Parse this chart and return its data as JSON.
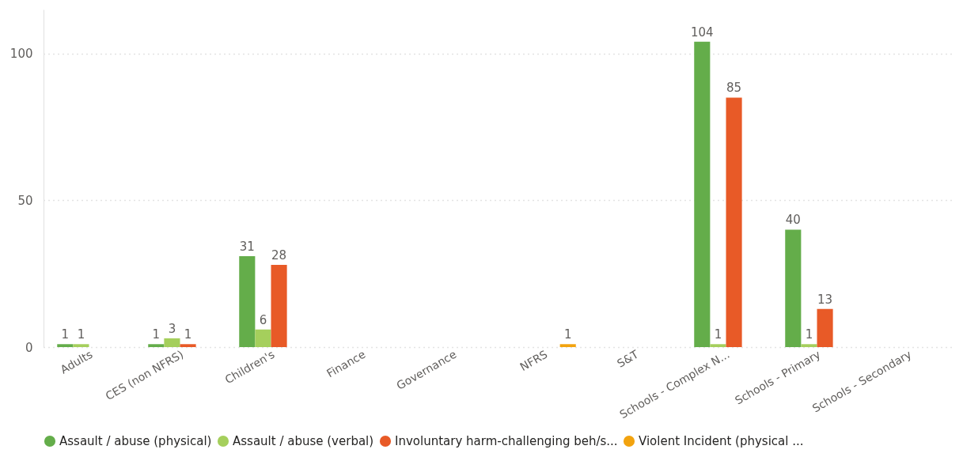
{
  "chart_data": {
    "type": "bar",
    "categories": [
      "Adults",
      "CES (non NFRS)",
      "Children's",
      "Finance",
      "Governance",
      "NFRS",
      "S&T",
      "Schools - Complex N...",
      "Schools - Primary",
      "Schools - Secondary"
    ],
    "series": [
      {
        "name": "Assault / abuse (physical)",
        "color": "#64ad4a",
        "values": [
          1,
          1,
          31,
          null,
          null,
          null,
          null,
          104,
          40,
          null
        ]
      },
      {
        "name": "Assault / abuse (verbal)",
        "color": "#a5cf5c",
        "values": [
          1,
          3,
          6,
          null,
          null,
          null,
          null,
          1,
          1,
          null
        ]
      },
      {
        "name": "Involuntary harm-challenging beh/s...",
        "color": "#e85a27",
        "values": [
          null,
          1,
          28,
          null,
          null,
          null,
          null,
          85,
          13,
          null
        ]
      },
      {
        "name": "Violent Incident (physical ...",
        "color": "#f2a30f",
        "values": [
          null,
          null,
          null,
          null,
          null,
          1,
          null,
          null,
          null,
          null
        ]
      }
    ],
    "ylim": [
      0,
      115
    ],
    "yticks": [
      0,
      50,
      100
    ],
    "grid": "y",
    "legend": "bottom",
    "data_labels": true
  }
}
